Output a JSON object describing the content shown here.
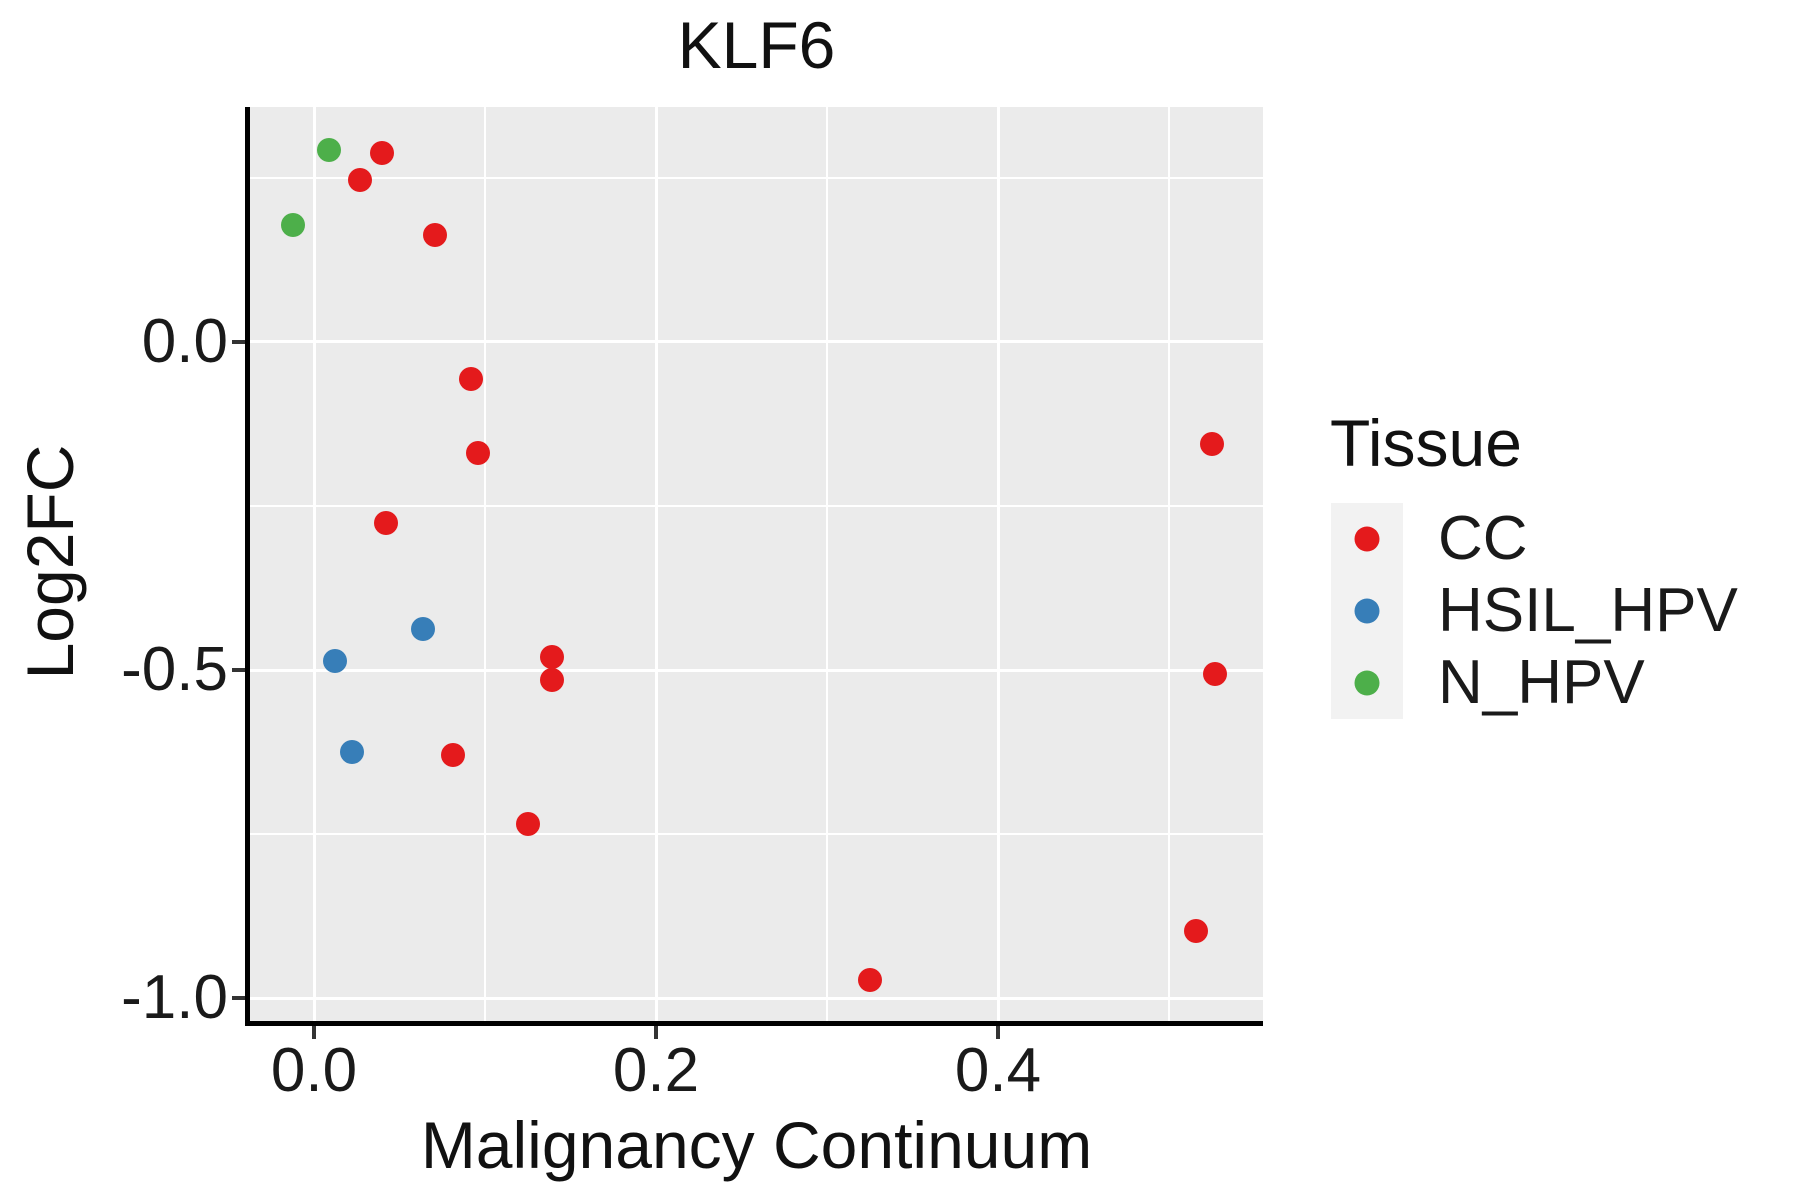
{
  "title": "KLF6",
  "axes": {
    "x": {
      "label": "Malignancy Continuum",
      "lim": [
        -0.0374,
        0.555
      ],
      "major_ticks": [
        {
          "value": 0.0,
          "label": "0.0"
        },
        {
          "value": 0.2,
          "label": "0.2"
        },
        {
          "value": 0.4,
          "label": "0.4"
        }
      ],
      "minor_gridlines": [
        0.1,
        0.3,
        0.5
      ]
    },
    "y": {
      "label": "Log2FC",
      "lim": [
        -1.035,
        0.358
      ],
      "major_ticks": [
        {
          "value": 0.0,
          "label": "0.0"
        },
        {
          "value": -0.5,
          "label": "-0.5"
        },
        {
          "value": -1.0,
          "label": "-1.0"
        }
      ],
      "minor_gridlines": [
        0.25,
        -0.25,
        -0.75
      ]
    }
  },
  "legend": {
    "title": "Tissue",
    "items": [
      {
        "label": "CC",
        "color": "#E41A1C"
      },
      {
        "label": "HSIL_HPV",
        "color": "#377EB8"
      },
      {
        "label": "N_HPV",
        "color": "#4DAF4A"
      }
    ]
  },
  "colors": {
    "panel_background": "#EBEBEB",
    "gridline": "#FFFFFF",
    "axis_spine": "#000000",
    "tick_mark": "#333333",
    "text": "#111111",
    "legend_key_background": "#F2F2F2"
  },
  "chart_data": {
    "type": "scatter",
    "title": "KLF6",
    "xlabel": "Malignancy Continuum",
    "ylabel": "Log2FC",
    "xlim": [
      -0.0374,
      0.555
    ],
    "ylim": [
      -1.035,
      0.358
    ],
    "x_major_ticks": [
      0.0,
      0.2,
      0.4
    ],
    "y_major_ticks": [
      0.0,
      -0.5,
      -1.0
    ],
    "grid": "white major and minor gridlines on grey panel",
    "legend_position": "right",
    "series": [
      {
        "name": "CC",
        "color": "#E41A1C",
        "points": [
          [
            0.04,
            0.288
          ],
          [
            0.027,
            0.247
          ],
          [
            0.071,
            0.163
          ],
          [
            0.092,
            -0.056
          ],
          [
            0.096,
            -0.169
          ],
          [
            0.042,
            -0.276
          ],
          [
            0.139,
            -0.48
          ],
          [
            0.139,
            -0.515
          ],
          [
            0.081,
            -0.63
          ],
          [
            0.125,
            -0.735
          ],
          [
            0.325,
            -0.973
          ],
          [
            0.516,
            -0.898
          ],
          [
            0.525,
            -0.156
          ],
          [
            0.527,
            -0.506
          ]
        ]
      },
      {
        "name": "HSIL_HPV",
        "color": "#377EB8",
        "points": [
          [
            0.064,
            -0.438
          ],
          [
            0.012,
            -0.486
          ],
          [
            0.022,
            -0.625
          ]
        ]
      },
      {
        "name": "N_HPV",
        "color": "#4DAF4A",
        "points": [
          [
            0.009,
            0.293
          ],
          [
            -0.012,
            0.178
          ]
        ]
      }
    ]
  }
}
